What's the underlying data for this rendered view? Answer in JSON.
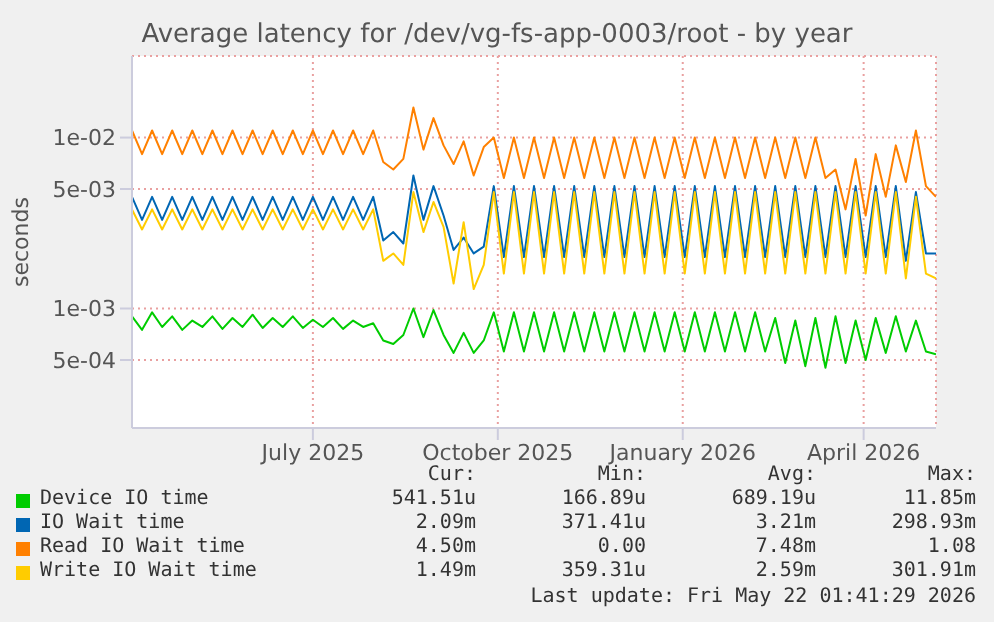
{
  "chart_data": {
    "type": "line",
    "title": "Average latency for /dev/vg-fs-app-0003/root - by year",
    "ylabel": "seconds",
    "log": "y",
    "grid": true,
    "legend": "bottom",
    "marker": "none",
    "line_style": "solid",
    "x": [
      "2025-04-17",
      "2025-04-22",
      "2025-04-27",
      "2025-05-02",
      "2025-05-07",
      "2025-05-12",
      "2025-05-17",
      "2025-05-22",
      "2025-05-27",
      "2025-06-01",
      "2025-06-06",
      "2025-06-11",
      "2025-06-16",
      "2025-06-21",
      "2025-06-26",
      "2025-07-01",
      "2025-07-06",
      "2025-07-11",
      "2025-07-16",
      "2025-07-21",
      "2025-07-26",
      "2025-07-31",
      "2025-08-05",
      "2025-08-10",
      "2025-08-15",
      "2025-08-20",
      "2025-08-25",
      "2025-08-30",
      "2025-09-04",
      "2025-09-09",
      "2025-09-14",
      "2025-09-19",
      "2025-09-24",
      "2025-09-29",
      "2025-10-04",
      "2025-10-09",
      "2025-10-14",
      "2025-10-19",
      "2025-10-24",
      "2025-10-29",
      "2025-11-03",
      "2025-11-08",
      "2025-11-13",
      "2025-11-18",
      "2025-11-23",
      "2025-11-28",
      "2025-12-03",
      "2025-12-08",
      "2025-12-13",
      "2025-12-18",
      "2025-12-23",
      "2025-12-28",
      "2026-01-02",
      "2026-01-07",
      "2026-01-12",
      "2026-01-17",
      "2026-01-22",
      "2026-01-27",
      "2026-02-01",
      "2026-02-06",
      "2026-02-11",
      "2026-02-16",
      "2026-02-21",
      "2026-02-26",
      "2026-03-03",
      "2026-03-08",
      "2026-03-13",
      "2026-03-18",
      "2026-03-23",
      "2026-03-28",
      "2026-04-02",
      "2026-04-07",
      "2026-04-12",
      "2026-04-17",
      "2026-04-22",
      "2026-04-27",
      "2026-05-02",
      "2026-05-07",
      "2026-05-12",
      "2026-05-17",
      "2026-05-22"
    ],
    "xlim": [
      "2025-04-17",
      "2026-05-22"
    ],
    "xticks": [
      {
        "value": "2025-07-16",
        "label": "July 2025"
      },
      {
        "value": "2025-10-16",
        "label": "October 2025"
      },
      {
        "value": "2026-01-16",
        "label": "January 2026"
      },
      {
        "value": "2026-04-16",
        "label": "April 2026"
      }
    ],
    "ylim": [
      0.0002,
      0.03
    ],
    "yticks": [
      {
        "value": 0.0005,
        "label": "5e-04"
      },
      {
        "value": 0.001,
        "label": "1e-03"
      },
      {
        "value": 0.005,
        "label": "5e-03"
      },
      {
        "value": 0.01,
        "label": "1e-02"
      }
    ],
    "series": [
      {
        "name": "Device IO time",
        "color": "#00cc00",
        "values": [
          0.0009,
          0.00075,
          0.00095,
          0.00078,
          0.0009,
          0.00075,
          0.00085,
          0.00078,
          0.0009,
          0.00076,
          0.00088,
          0.00078,
          0.00092,
          0.00077,
          0.00088,
          0.00078,
          0.0009,
          0.00077,
          0.00086,
          0.00078,
          0.00088,
          0.00076,
          0.00085,
          0.00078,
          0.00082,
          0.00065,
          0.00062,
          0.0007,
          0.001,
          0.00068,
          0.00098,
          0.0007,
          0.00055,
          0.00072,
          0.00055,
          0.00065,
          0.00095,
          0.00056,
          0.00095,
          0.00056,
          0.00095,
          0.00056,
          0.00095,
          0.00056,
          0.00095,
          0.00056,
          0.00095,
          0.00056,
          0.00095,
          0.00056,
          0.00095,
          0.00056,
          0.00095,
          0.00056,
          0.00095,
          0.00056,
          0.00095,
          0.00056,
          0.00095,
          0.00056,
          0.00095,
          0.00056,
          0.00095,
          0.00056,
          0.00088,
          0.00048,
          0.00085,
          0.00046,
          0.00088,
          0.00045,
          0.0009,
          0.00048,
          0.00085,
          0.0005,
          0.00088,
          0.00055,
          0.0009,
          0.00056,
          0.00085,
          0.00056,
          0.00054
        ]
      },
      {
        "name": "IO Wait time",
        "color": "#0066b3",
        "values": [
          0.0045,
          0.0033,
          0.0045,
          0.0033,
          0.0045,
          0.0033,
          0.0045,
          0.0033,
          0.0045,
          0.0033,
          0.0045,
          0.0033,
          0.0045,
          0.0033,
          0.0045,
          0.0033,
          0.0045,
          0.0033,
          0.0045,
          0.0033,
          0.0045,
          0.0033,
          0.0045,
          0.0033,
          0.0045,
          0.0025,
          0.0028,
          0.0024,
          0.006,
          0.0033,
          0.0052,
          0.0035,
          0.0022,
          0.0026,
          0.0021,
          0.0023,
          0.0052,
          0.002,
          0.0052,
          0.002,
          0.0052,
          0.002,
          0.0052,
          0.002,
          0.0052,
          0.002,
          0.0052,
          0.002,
          0.0052,
          0.002,
          0.0052,
          0.002,
          0.0052,
          0.002,
          0.0052,
          0.002,
          0.0052,
          0.002,
          0.0052,
          0.002,
          0.0052,
          0.002,
          0.0052,
          0.002,
          0.0052,
          0.002,
          0.0052,
          0.002,
          0.0052,
          0.002,
          0.0052,
          0.002,
          0.0052,
          0.002,
          0.0052,
          0.002,
          0.0052,
          0.0019,
          0.0048,
          0.0021,
          0.0021
        ]
      },
      {
        "name": "Read IO Wait time",
        "color": "#ff8000",
        "values": [
          0.011,
          0.008,
          0.011,
          0.008,
          0.011,
          0.008,
          0.011,
          0.008,
          0.011,
          0.008,
          0.011,
          0.008,
          0.011,
          0.008,
          0.011,
          0.008,
          0.011,
          0.008,
          0.011,
          0.008,
          0.011,
          0.008,
          0.011,
          0.008,
          0.011,
          0.0072,
          0.0065,
          0.0075,
          0.015,
          0.0085,
          0.013,
          0.009,
          0.007,
          0.0095,
          0.006,
          0.0088,
          0.01,
          0.0058,
          0.01,
          0.0058,
          0.01,
          0.0058,
          0.01,
          0.0058,
          0.01,
          0.0058,
          0.01,
          0.0058,
          0.01,
          0.0058,
          0.01,
          0.0058,
          0.01,
          0.0058,
          0.01,
          0.0058,
          0.01,
          0.0058,
          0.01,
          0.0058,
          0.01,
          0.0058,
          0.01,
          0.0058,
          0.01,
          0.0058,
          0.01,
          0.0058,
          0.01,
          0.0058,
          0.0065,
          0.0038,
          0.0075,
          0.0035,
          0.008,
          0.0045,
          0.009,
          0.0055,
          0.011,
          0.0052,
          0.0045
        ]
      },
      {
        "name": "Write IO Wait time",
        "color": "#ffcc00",
        "values": [
          0.0038,
          0.0029,
          0.0038,
          0.0029,
          0.0038,
          0.0029,
          0.0038,
          0.0029,
          0.0038,
          0.0029,
          0.0038,
          0.0029,
          0.0038,
          0.0029,
          0.0038,
          0.0029,
          0.0038,
          0.0029,
          0.0038,
          0.0029,
          0.0038,
          0.0029,
          0.0038,
          0.0029,
          0.0038,
          0.0019,
          0.0021,
          0.0018,
          0.0048,
          0.0028,
          0.0042,
          0.003,
          0.0014,
          0.0032,
          0.0013,
          0.0018,
          0.0048,
          0.0016,
          0.0048,
          0.0016,
          0.0048,
          0.0016,
          0.0048,
          0.0016,
          0.0048,
          0.0016,
          0.0048,
          0.0016,
          0.0048,
          0.0016,
          0.0048,
          0.0016,
          0.0048,
          0.0016,
          0.0048,
          0.0016,
          0.0048,
          0.0016,
          0.0048,
          0.0016,
          0.0048,
          0.0016,
          0.0048,
          0.0016,
          0.0048,
          0.0016,
          0.0048,
          0.0016,
          0.0048,
          0.0016,
          0.0048,
          0.0016,
          0.0048,
          0.0016,
          0.0048,
          0.0016,
          0.0048,
          0.0015,
          0.0045,
          0.0016,
          0.0015
        ]
      }
    ],
    "annotations": [
      "Cur:",
      "Min:",
      "Avg:",
      "Max:",
      "541.51u",
      "166.89u",
      "689.19u",
      "11.85m",
      "2.09m",
      "371.41u",
      "3.21m",
      "298.93m",
      "4.50m",
      "0.00",
      "7.48m",
      "1.08",
      "1.49m",
      "359.31u",
      "2.59m",
      "301.91m",
      "Last update: Fri May 22 01:41:29 2026"
    ]
  }
}
